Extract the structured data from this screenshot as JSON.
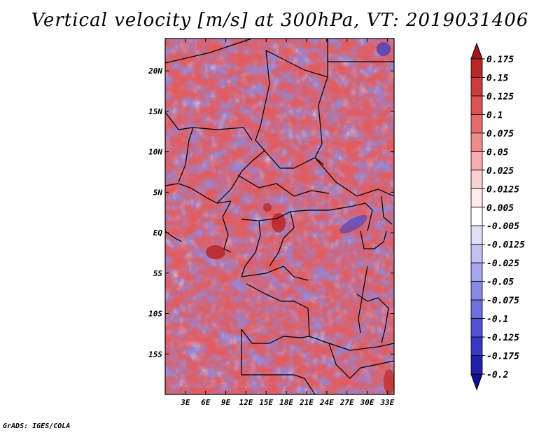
{
  "title": "Vertical velocity [m/s] at 300hPa, VT: 2019031406",
  "footer": "GrADS: IGES/COLA",
  "map": {
    "lat_range": [
      -20,
      24
    ],
    "lon_range": [
      0,
      34
    ],
    "lat_ticks": [
      "20N",
      "15N",
      "10N",
      "5N",
      "EQ",
      "5S",
      "10S",
      "15S"
    ],
    "lat_tick_values": [
      20,
      15,
      10,
      5,
      0,
      -5,
      -10,
      -15
    ],
    "lon_ticks": [
      "3E",
      "6E",
      "9E",
      "12E",
      "15E",
      "18E",
      "21E",
      "24E",
      "27E",
      "30E",
      "33E"
    ],
    "lon_tick_values": [
      3,
      6,
      9,
      12,
      15,
      18,
      21,
      24,
      27,
      30,
      33
    ]
  },
  "colorbar": {
    "labels": [
      "0.175",
      "0.15",
      "0.125",
      "0.1",
      "0.075",
      "0.05",
      "0.025",
      "0.0125",
      "0.005",
      "-0.005",
      "-0.0125",
      "-0.025",
      "-0.05",
      "-0.075",
      "-0.1",
      "-0.125",
      "-0.175",
      "-0.2"
    ],
    "colors": [
      "#a01818",
      "#b62828",
      "#c83c3c",
      "#d85454",
      "#e46e6e",
      "#ee8c8c",
      "#f6aeae",
      "#fbd0d0",
      "#fdeaea",
      "#ffffff",
      "#e0e0f8",
      "#c2c2f2",
      "#a6a6ec",
      "#8a8ae4",
      "#6e6edc",
      "#5252d0",
      "#3838c0",
      "#2020a8",
      "#101090"
    ]
  }
}
